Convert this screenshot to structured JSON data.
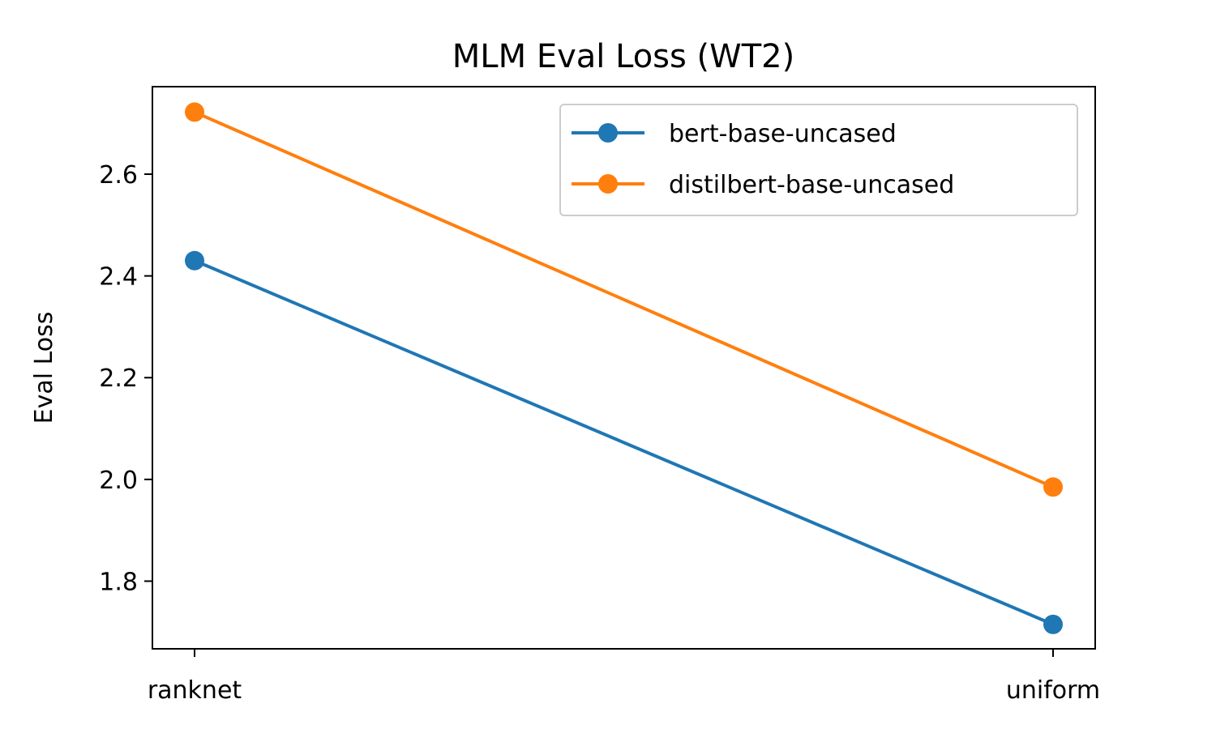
{
  "chart_data": {
    "type": "line",
    "title": "MLM Eval Loss (WT2)",
    "xlabel": "",
    "ylabel": "Eval Loss",
    "categories": [
      "ranknet",
      "uniform"
    ],
    "ylim": [
      1.667,
      2.772
    ],
    "yticks": [
      "1.8",
      "2.0",
      "2.2",
      "2.4",
      "2.6"
    ],
    "grid": false,
    "legend_position": "top-right",
    "series": [
      {
        "name": "bert-base-uncased",
        "color": "#1f77b4",
        "marker": "circle",
        "values": [
          2.43,
          1.715
        ]
      },
      {
        "name": "distilbert-base-uncased",
        "color": "#ff7f0e",
        "marker": "circle",
        "values": [
          2.722,
          1.985
        ]
      }
    ]
  }
}
